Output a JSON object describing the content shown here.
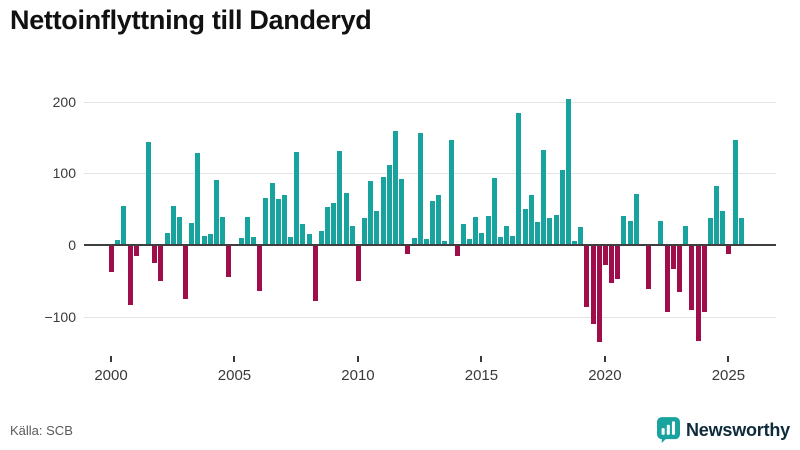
{
  "title": "Nettoinflyttning till Danderyd",
  "source_label": "Källa: SCB",
  "brand": {
    "name": "Newsworthy",
    "icon": "newsworthy-speech-bubble-bar-chart-icon",
    "icon_color": "#18a39e",
    "text_color": "#0e2b3c"
  },
  "colors": {
    "positive_bar": "#18a39e",
    "negative_bar": "#a00d4b",
    "gridline": "#e4e4e4",
    "zero_line": "#3f3f3f",
    "tick_label": "#3a3a3a",
    "title_text": "#111111",
    "source_text": "#5a5a5a"
  },
  "chart_data": {
    "type": "bar",
    "title": "Nettoinflyttning till Danderyd",
    "xlabel": "",
    "ylabel": "",
    "grid": true,
    "legend": false,
    "ylim": [
      -150,
      215
    ],
    "y_tick_values": [
      200,
      100,
      0,
      -100
    ],
    "y_tick_labels": [
      "200",
      "100",
      "0",
      "−100"
    ],
    "x_tick_years": [
      2000,
      2005,
      2010,
      2015,
      2020,
      2025
    ],
    "x_tick_labels": [
      "2000",
      "2005",
      "2010",
      "2015",
      "2020",
      "2025"
    ],
    "quarters": [
      "2000Q1",
      "2000Q2",
      "2000Q3",
      "2000Q4",
      "2001Q1",
      "2001Q2",
      "2001Q3",
      "2001Q4",
      "2002Q1",
      "2002Q2",
      "2002Q3",
      "2002Q4",
      "2003Q1",
      "2003Q2",
      "2003Q3",
      "2003Q4",
      "2004Q1",
      "2004Q2",
      "2004Q3",
      "2004Q4",
      "2005Q1",
      "2005Q2",
      "2005Q3",
      "2005Q4",
      "2006Q1",
      "2006Q2",
      "2006Q3",
      "2006Q4",
      "2007Q1",
      "2007Q2",
      "2007Q3",
      "2007Q4",
      "2008Q1",
      "2008Q2",
      "2008Q3",
      "2008Q4",
      "2009Q1",
      "2009Q2",
      "2009Q3",
      "2009Q4",
      "2010Q1",
      "2010Q2",
      "2010Q3",
      "2010Q4",
      "2011Q1",
      "2011Q2",
      "2011Q3",
      "2011Q4",
      "2012Q1",
      "2012Q2",
      "2012Q3",
      "2012Q4",
      "2013Q1",
      "2013Q2",
      "2013Q3",
      "2013Q4",
      "2014Q1",
      "2014Q2",
      "2014Q3",
      "2014Q4",
      "2015Q1",
      "2015Q2",
      "2015Q3",
      "2015Q4",
      "2016Q1",
      "2016Q2",
      "2016Q3",
      "2016Q4",
      "2017Q1",
      "2017Q2",
      "2017Q3",
      "2017Q4",
      "2018Q1",
      "2018Q2",
      "2018Q3",
      "2018Q4",
      "2019Q1",
      "2019Q2",
      "2019Q3",
      "2019Q4",
      "2020Q1",
      "2020Q2",
      "2020Q3",
      "2020Q4",
      "2021Q1",
      "2021Q2",
      "2021Q3",
      "2021Q4",
      "2022Q1",
      "2022Q2",
      "2022Q3",
      "2022Q4",
      "2023Q1",
      "2023Q2",
      "2023Q3",
      "2023Q4",
      "2024Q1",
      "2024Q2",
      "2024Q3",
      "2024Q4",
      "2025Q1",
      "2025Q2",
      "2025Q3"
    ],
    "values": [
      -37,
      7,
      55,
      -84,
      -15,
      0,
      143,
      -25,
      -50,
      17,
      55,
      39,
      -75,
      31,
      128,
      13,
      16,
      91,
      39,
      -45,
      0,
      10,
      39,
      11,
      -64,
      65,
      87,
      64,
      70,
      11,
      130,
      29,
      16,
      -78,
      20,
      53,
      59,
      131,
      73,
      27,
      -50,
      37,
      89,
      48,
      95,
      112,
      159,
      92,
      -13,
      10,
      156,
      9,
      61,
      69,
      6,
      146,
      -15,
      29,
      8,
      39,
      17,
      40,
      94,
      11,
      27,
      13,
      184,
      50,
      69,
      32,
      133,
      37,
      42,
      105,
      204,
      6,
      25,
      -86,
      -110,
      -135,
      -28,
      -53,
      -47,
      40,
      33,
      71,
      0,
      -62,
      0,
      33,
      -93,
      -33,
      -65,
      27,
      -90,
      -134,
      -93,
      37,
      82,
      48,
      -12,
      147,
      37
    ]
  }
}
